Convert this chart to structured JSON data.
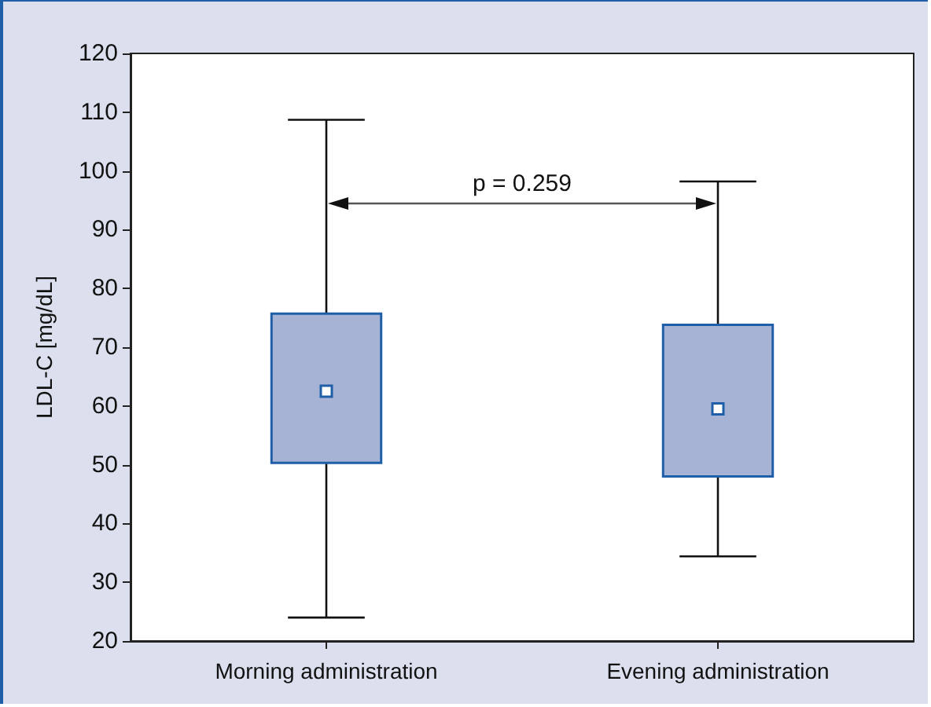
{
  "chart_data": {
    "type": "box",
    "ylabel": "LDL-C [mg/dL]",
    "categories": [
      "Morning administration",
      "Evening administration"
    ],
    "boxes": [
      {
        "low": 24,
        "q1": 50.3,
        "median": 62.5,
        "q3": 75.7,
        "high": 108.7
      },
      {
        "low": 34.4,
        "q1": 48,
        "median": 59.5,
        "q3": 73.8,
        "high": 98.2
      }
    ],
    "color": "#a7b3d5",
    "ylim": [
      20,
      120
    ],
    "yticks": [
      20,
      30,
      40,
      50,
      60,
      70,
      80,
      90,
      100,
      110,
      120
    ],
    "grid": false,
    "annotations": [
      "p = 0.259"
    ]
  }
}
